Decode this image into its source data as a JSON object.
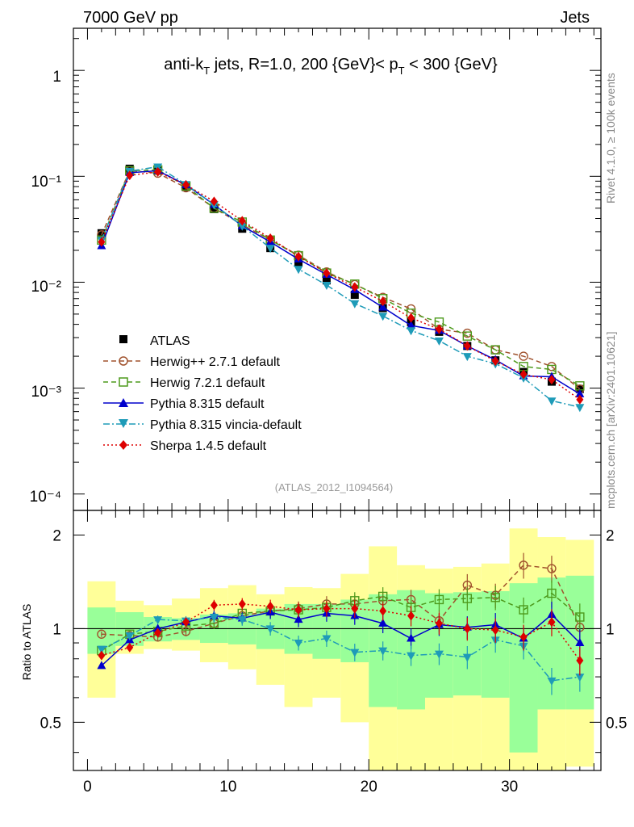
{
  "header": {
    "left": "7000 GeV pp",
    "right": "Jets",
    "side_top": "Rivet 4.1.0, ≥ 100k events",
    "side_bottom": "mcplots.cern.ch [arXiv:2401.10621]"
  },
  "chart_data": [
    {
      "type": "line",
      "panel": "main",
      "title_parts": {
        "a": "anti-k",
        "a_sub": "T",
        "b": " jets, R=1.0, 200 {GeV}< p",
        "b_sub": "T",
        "c": " < 300 {GeV}"
      },
      "yscale": "log",
      "ylim": [
        7e-05,
        2.5
      ],
      "xlim": [
        -1,
        36.5
      ],
      "ytick_labels": [
        "1",
        "10⁻¹",
        "10⁻²",
        "10⁻³",
        "10⁻⁴"
      ],
      "watermark": "(ATLAS_2012_I1094564)",
      "legend_position": "middle-left",
      "x": [
        1,
        3,
        5,
        7,
        9,
        11,
        13,
        15,
        17,
        19,
        21,
        23,
        25,
        27,
        29,
        31,
        33,
        35
      ],
      "series": [
        {
          "name": "ATLAS",
          "color": "#000000",
          "marker": "square-filled",
          "values": [
            0.029,
            0.118,
            0.113,
            0.079,
            0.049,
            0.032,
            0.021,
            0.0155,
            0.0104,
            0.0076,
            0.0057,
            0.0042,
            0.0034,
            0.0025,
            0.00183,
            0.00142,
            0.00115,
            0.00098
          ]
        },
        {
          "name": "Herwig++ 2.7.1 default",
          "color": "#a0522d",
          "marker": "circle-open",
          "line": "dashed",
          "values": [
            0.028,
            0.113,
            0.107,
            0.078,
            0.05,
            0.035,
            0.025,
            0.018,
            0.0125,
            0.0095,
            0.0072,
            0.0056,
            0.0036,
            0.0033,
            0.0023,
            0.002,
            0.0016,
            0.00098
          ]
        },
        {
          "name": "Herwig 7.2.1 default",
          "color": "#4d9a1c",
          "marker": "square-open",
          "line": "dashed",
          "values": [
            0.025,
            0.113,
            0.115,
            0.081,
            0.05,
            0.037,
            0.025,
            0.0178,
            0.0122,
            0.0096,
            0.007,
            0.0051,
            0.0042,
            0.0031,
            0.0023,
            0.0016,
            0.0015,
            0.00105
          ]
        },
        {
          "name": "Pythia 8.315 default",
          "color": "#0000cc",
          "marker": "triangle-up",
          "line": "solid",
          "values": [
            0.022,
            0.108,
            0.113,
            0.083,
            0.054,
            0.034,
            0.024,
            0.0165,
            0.0118,
            0.0085,
            0.0058,
            0.0039,
            0.0035,
            0.0025,
            0.00185,
            0.0013,
            0.00128,
            0.00088
          ]
        },
        {
          "name": "Pythia 8.315 vincia-default",
          "color": "#1e9bb8",
          "marker": "triangle-down",
          "line": "dash-dot",
          "values": [
            0.025,
            0.112,
            0.123,
            0.084,
            0.054,
            0.034,
            0.021,
            0.0133,
            0.0094,
            0.0063,
            0.0048,
            0.0035,
            0.0028,
            0.002,
            0.0017,
            0.00125,
            0.00076,
            0.00066
          ]
        },
        {
          "name": "Sherpa 1.4.5 default",
          "color": "#dd0000",
          "marker": "diamond",
          "line": "dotted",
          "values": [
            0.024,
            0.102,
            0.11,
            0.083,
            0.058,
            0.038,
            0.026,
            0.0175,
            0.0122,
            0.009,
            0.0066,
            0.0046,
            0.0036,
            0.0025,
            0.0018,
            0.00135,
            0.0012,
            0.00078
          ]
        }
      ]
    },
    {
      "type": "line",
      "panel": "ratio",
      "ylabel": "Ratio to ATLAS",
      "xlabel": "",
      "ylim": [
        0.35,
        2.4
      ],
      "xlim": [
        -1,
        36.5
      ],
      "xticks": [
        0,
        10,
        20,
        30
      ],
      "yticks": [
        0.5,
        1,
        2
      ],
      "bands": {
        "edges": [
          0,
          2,
          4,
          6,
          8,
          10,
          12,
          14,
          16,
          18,
          20,
          22,
          24,
          26,
          28,
          30,
          32,
          34,
          36
        ],
        "yellow_low": [
          0.6,
          0.83,
          0.86,
          0.85,
          0.78,
          0.74,
          0.66,
          0.56,
          0.6,
          0.5,
          0.31,
          0.28,
          0.28,
          0.28,
          0.33,
          0.35,
          0.35,
          0.36
        ],
        "yellow_high": [
          1.42,
          1.23,
          1.19,
          1.25,
          1.35,
          1.38,
          1.29,
          1.36,
          1.35,
          1.5,
          1.84,
          1.6,
          1.56,
          1.58,
          1.62,
          2.1,
          1.97,
          1.93
        ],
        "green_low": [
          0.83,
          0.88,
          0.91,
          0.92,
          0.9,
          0.89,
          0.86,
          0.83,
          0.8,
          0.78,
          0.56,
          0.55,
          0.6,
          0.61,
          0.6,
          0.4,
          0.55,
          0.55
        ],
        "green_high": [
          1.17,
          1.13,
          1.09,
          1.08,
          1.11,
          1.12,
          1.16,
          1.2,
          1.2,
          1.24,
          1.29,
          1.33,
          1.3,
          1.31,
          1.32,
          1.4,
          1.46,
          1.48
        ]
      },
      "x": [
        1,
        3,
        5,
        7,
        9,
        11,
        13,
        15,
        17,
        19,
        21,
        23,
        25,
        27,
        29,
        31,
        33,
        35
      ],
      "series": [
        {
          "name": "Herwig++ 2.7.1 default",
          "color": "#a0522d",
          "values": [
            0.96,
            0.95,
            0.94,
            0.98,
            1.04,
            1.1,
            1.14,
            1.16,
            1.2,
            1.2,
            1.23,
            1.24,
            1.06,
            1.38,
            1.28,
            1.6,
            1.56,
            1.01
          ]
        },
        {
          "name": "Herwig 7.2.1 default",
          "color": "#4d9a1c",
          "values": [
            0.85,
            0.96,
            0.98,
            1.02,
            1.04,
            1.12,
            1.14,
            1.15,
            1.17,
            1.23,
            1.27,
            1.17,
            1.24,
            1.25,
            1.26,
            1.15,
            1.3,
            1.09
          ]
        },
        {
          "name": "Pythia 8.315 default",
          "color": "#0000cc",
          "values": [
            0.76,
            0.92,
            1.0,
            1.05,
            1.1,
            1.08,
            1.13,
            1.07,
            1.12,
            1.1,
            1.04,
            0.93,
            1.03,
            1.01,
            1.03,
            0.93,
            1.11,
            0.9
          ]
        },
        {
          "name": "Pythia 8.315 vincia-default",
          "color": "#1e9bb8",
          "values": [
            0.86,
            0.95,
            1.07,
            1.06,
            1.09,
            1.07,
            1.0,
            0.9,
            0.93,
            0.84,
            0.85,
            0.82,
            0.83,
            0.81,
            0.92,
            0.88,
            0.68,
            0.7
          ]
        },
        {
          "name": "Sherpa 1.4.5 default",
          "color": "#dd0000",
          "values": [
            0.82,
            0.87,
            0.97,
            1.05,
            1.19,
            1.2,
            1.18,
            1.15,
            1.16,
            1.16,
            1.14,
            1.1,
            1.04,
            1.0,
            0.99,
            0.94,
            1.05,
            0.79
          ]
        }
      ]
    }
  ]
}
